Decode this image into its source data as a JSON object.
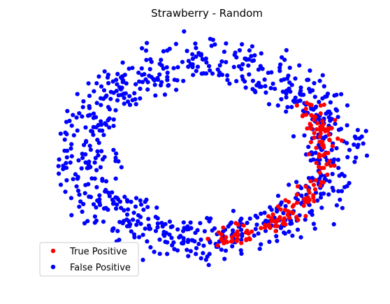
{
  "chart_data": {
    "type": "scatter",
    "title": "Strawberry - Random",
    "xlabel": "",
    "ylabel": "",
    "axes_visible": false,
    "legend": {
      "placement": "lower-left",
      "entries": [
        {
          "label": "True Positive",
          "color": "#ff0000"
        },
        {
          "label": "False Positive",
          "color": "#0000ff"
        }
      ]
    },
    "series_model": {
      "description": "Points lie on a noisy elliptical ring; True Positives cluster on the right/lower-right arc.",
      "true_positive_count": 170,
      "false_positive_count": 800
    },
    "series": [
      {
        "name": "True Positive",
        "color": "#ff0000"
      },
      {
        "name": "False Positive",
        "color": "#0000ff"
      }
    ]
  }
}
